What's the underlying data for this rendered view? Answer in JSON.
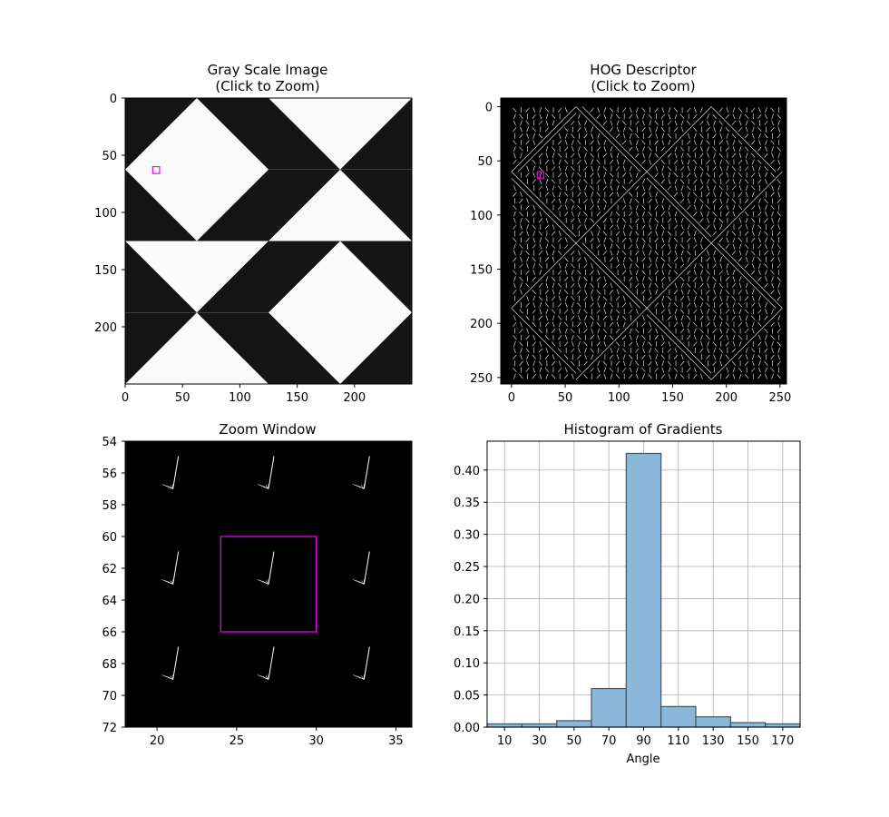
{
  "panels": {
    "gray": {
      "title_line1": "Gray Scale Image",
      "title_line2": "(Click to Zoom)",
      "xticks": [
        0,
        50,
        100,
        150,
        200
      ],
      "yticks": [
        0,
        50,
        100,
        150,
        200
      ],
      "selection_box": {
        "x": 27,
        "y": 63,
        "half_size": 3
      },
      "box_color": "#ff00ff"
    },
    "hog": {
      "title_line1": "HOG Descriptor",
      "title_line2": "(Click to Zoom)",
      "xticks": [
        0,
        50,
        100,
        150,
        200,
        250
      ],
      "yticks": [
        0,
        50,
        100,
        150,
        200,
        250
      ],
      "selection_box": {
        "x": 27,
        "y": 63,
        "half_size": 3
      },
      "box_color": "#ff00ff"
    },
    "zoom": {
      "title": "Zoom Window",
      "xlim": [
        18,
        36
      ],
      "ylim": [
        72,
        54
      ],
      "xticks": [
        20,
        25,
        30,
        35
      ],
      "yticks": [
        54,
        56,
        58,
        60,
        62,
        64,
        66,
        68,
        70,
        72
      ],
      "selection_box": {
        "x0": 24,
        "x1": 30,
        "y0": 60,
        "y1": 66
      },
      "box_color": "#ff00ff"
    }
  },
  "chart_data": {
    "type": "bar",
    "title": "Histogram of Gradients",
    "xlabel": "Angle",
    "ylabel": "",
    "categories": [
      "10",
      "30",
      "50",
      "70",
      "90",
      "110",
      "130",
      "150",
      "170"
    ],
    "values": [
      0.005,
      0.005,
      0.01,
      0.06,
      0.426,
      0.032,
      0.016,
      0.007,
      0.005
    ],
    "xlim": [
      0,
      180
    ],
    "ylim": [
      0,
      0.445
    ],
    "yticks": [
      "0.00",
      "0.05",
      "0.10",
      "0.15",
      "0.20",
      "0.25",
      "0.30",
      "0.35",
      "0.40"
    ],
    "grid": true,
    "bar_color": "#8bb8d9",
    "edge_color": "#3a5566"
  }
}
